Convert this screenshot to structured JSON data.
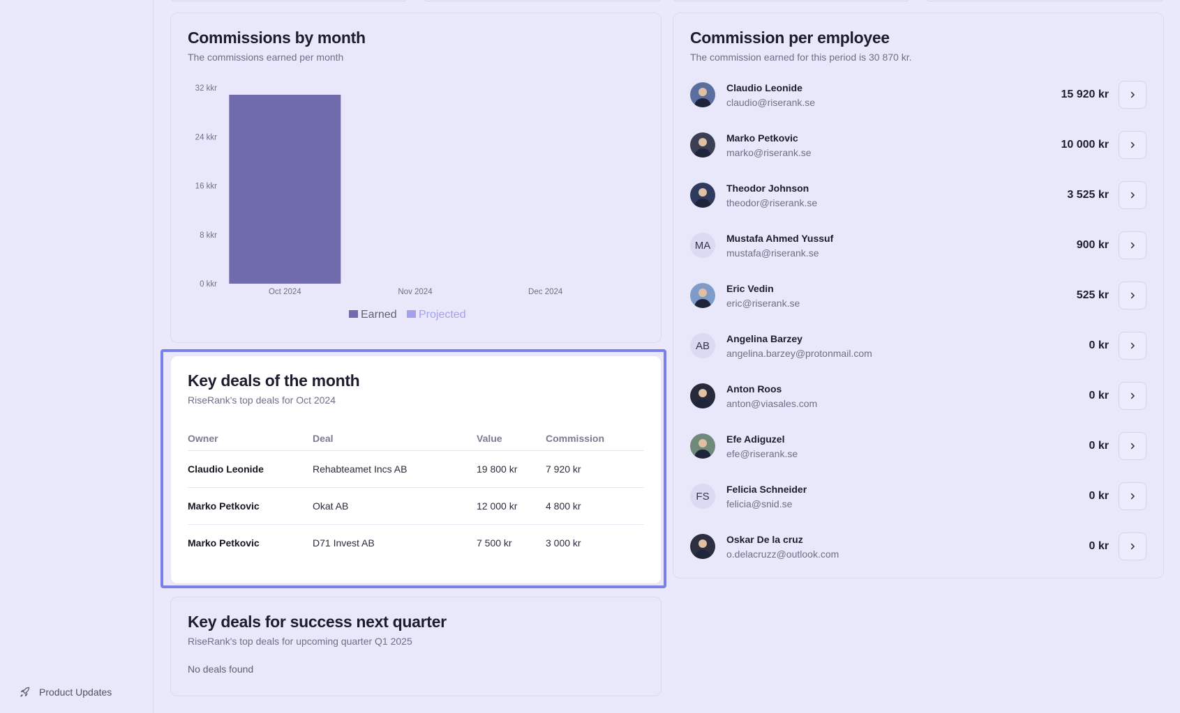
{
  "sidebar": {
    "footer_label": "Product Updates",
    "footer_icon": "rocket-icon"
  },
  "commissions_chart": {
    "title": "Commissions by month",
    "subtitle": "The commissions earned per month"
  },
  "chart_data": {
    "type": "bar",
    "title": "Commissions by month",
    "categories": [
      "Oct 2024",
      "Nov 2024",
      "Dec 2024"
    ],
    "series": [
      {
        "name": "Earned",
        "values": [
          30870,
          0,
          0
        ],
        "color": "#6f6bac"
      },
      {
        "name": "Projected",
        "values": [
          0,
          0,
          0
        ],
        "color": "#a3a0ee"
      }
    ],
    "yticks": [
      0,
      8000,
      16000,
      24000,
      32000
    ],
    "ytick_labels": [
      "0 kkr",
      "8 kkr",
      "16 kkr",
      "24 kkr",
      "32 kkr"
    ],
    "ylim": [
      0,
      32000
    ],
    "legend": "bottom-center"
  },
  "key_deals": {
    "title": "Key deals of the month",
    "subtitle": "RiseRank's top deals for Oct 2024",
    "columns": [
      "Owner",
      "Deal",
      "Value",
      "Commission"
    ],
    "rows": [
      {
        "owner": "Claudio Leonide",
        "deal": "Rehabteamet Incs AB",
        "value": "19 800 kr",
        "commission": "7 920 kr"
      },
      {
        "owner": "Marko Petkovic",
        "deal": "Okat AB",
        "value": "12 000 kr",
        "commission": "4 800 kr"
      },
      {
        "owner": "Marko Petkovic",
        "deal": "D71 Invest AB",
        "value": "7 500 kr",
        "commission": "3 000 kr"
      }
    ]
  },
  "next_quarter": {
    "title": "Key deals for success next quarter",
    "subtitle": "RiseRank's top deals for upcoming quarter Q1 2025",
    "empty": "No deals found"
  },
  "employees": {
    "title": "Commission per employee",
    "subtitle": "The commission earned for this period is 30 870 kr.",
    "items": [
      {
        "name": "Claudio Leonide",
        "email": "claudio@riserank.se",
        "amount": "15 920 kr",
        "initials": "",
        "photo_color": "#5b6f9e"
      },
      {
        "name": "Marko Petkovic",
        "email": "marko@riserank.se",
        "amount": "10 000 kr",
        "initials": "",
        "photo_color": "#3b3f55"
      },
      {
        "name": "Theodor Johnson",
        "email": "theodor@riserank.se",
        "amount": "3 525 kr",
        "initials": "",
        "photo_color": "#2f3b5e"
      },
      {
        "name": "Mustafa Ahmed Yussuf",
        "email": "mustafa@riserank.se",
        "amount": "900 kr",
        "initials": "MA",
        "photo_color": ""
      },
      {
        "name": "Eric Vedin",
        "email": "eric@riserank.se",
        "amount": "525 kr",
        "initials": "",
        "photo_color": "#7f9cc8"
      },
      {
        "name": "Angelina Barzey",
        "email": "angelina.barzey@protonmail.com",
        "amount": "0 kr",
        "initials": "AB",
        "photo_color": ""
      },
      {
        "name": "Anton Roos",
        "email": "anton@viasales.com",
        "amount": "0 kr",
        "initials": "",
        "photo_color": "#262a3a"
      },
      {
        "name": "Efe Adiguzel",
        "email": "efe@riserank.se",
        "amount": "0 kr",
        "initials": "",
        "photo_color": "#6f8a78"
      },
      {
        "name": "Felicia Schneider",
        "email": "felicia@snid.se",
        "amount": "0 kr",
        "initials": "FS",
        "photo_color": ""
      },
      {
        "name": "Oskar De la cruz",
        "email": "o.delacruzz@outlook.com",
        "amount": "0 kr",
        "initials": "",
        "photo_color": "#2c2f3f"
      }
    ]
  }
}
